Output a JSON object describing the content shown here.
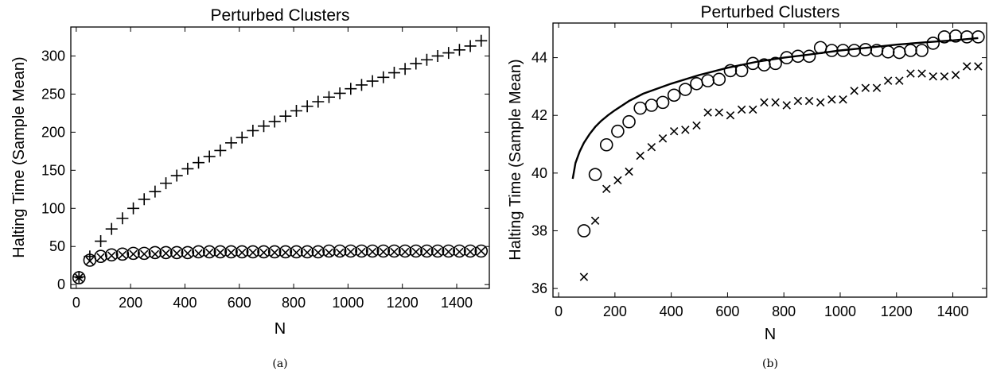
{
  "chart_data": [
    {
      "type": "scatter",
      "title": "Perturbed Clusters",
      "xlabel": "N",
      "ylabel": "Halting Time (Sample Mean)",
      "caption": "(a)",
      "xlim": [
        -20,
        1520
      ],
      "ylim": [
        -5,
        338
      ],
      "xticks": [
        0,
        200,
        400,
        600,
        800,
        1000,
        1200,
        1400
      ],
      "yticks": [
        0,
        50,
        100,
        150,
        200,
        250,
        300
      ],
      "grid": false,
      "series": [
        {
          "marker": "plus",
          "x": [
            10,
            50,
            90,
            130,
            170,
            210,
            250,
            290,
            330,
            370,
            410,
            450,
            490,
            530,
            570,
            610,
            650,
            690,
            730,
            770,
            810,
            850,
            890,
            930,
            970,
            1010,
            1050,
            1090,
            1130,
            1170,
            1210,
            1250,
            1290,
            1330,
            1370,
            1410,
            1450,
            1490
          ],
          "y": [
            10,
            37,
            57,
            73,
            87,
            100,
            112,
            122,
            133,
            143,
            152,
            160,
            168,
            176,
            186,
            193,
            202,
            208,
            214,
            221,
            228,
            234,
            240,
            246,
            251,
            257,
            262,
            267,
            272,
            278,
            283,
            290,
            295,
            300,
            304,
            308,
            313,
            320
          ]
        },
        {
          "marker": "circle",
          "x": [
            10,
            50,
            90,
            130,
            170,
            210,
            250,
            290,
            330,
            370,
            410,
            450,
            490,
            530,
            570,
            610,
            650,
            690,
            730,
            770,
            810,
            850,
            890,
            930,
            970,
            1010,
            1050,
            1090,
            1130,
            1170,
            1210,
            1250,
            1290,
            1330,
            1370,
            1410,
            1450,
            1490
          ],
          "y": [
            9,
            32,
            37,
            39,
            40,
            41,
            41,
            42,
            42,
            42,
            42,
            43,
            43,
            43,
            43,
            43,
            43,
            43,
            43,
            43,
            43,
            43,
            43,
            44,
            44,
            44,
            44,
            44,
            44,
            44,
            44,
            44,
            44,
            44,
            44,
            44,
            44,
            44
          ]
        },
        {
          "marker": "x",
          "x": [
            10,
            50,
            90,
            130,
            170,
            210,
            250,
            290,
            330,
            370,
            410,
            450,
            490,
            530,
            570,
            610,
            650,
            690,
            730,
            770,
            810,
            850,
            890,
            930,
            970,
            1010,
            1050,
            1090,
            1130,
            1170,
            1210,
            1250,
            1290,
            1330,
            1370,
            1410,
            1450,
            1490
          ],
          "y": [
            9,
            31,
            36,
            38,
            39,
            40,
            40,
            40,
            41,
            41,
            41,
            41,
            42,
            42,
            42,
            42,
            42,
            42,
            42,
            42,
            42,
            42,
            42,
            42,
            42,
            43,
            43,
            43,
            43,
            43,
            43,
            43,
            43,
            43,
            43,
            43,
            43,
            44
          ]
        },
        {
          "marker": "asterisk",
          "x": [
            10
          ],
          "y": [
            9
          ]
        }
      ]
    },
    {
      "type": "scatter",
      "title": "Perturbed Clusters",
      "xlabel": "N",
      "ylabel": "Halting Time (Sample Mean)",
      "caption": "(b)",
      "xlim": [
        -20,
        1520
      ],
      "ylim": [
        35.7,
        45.2
      ],
      "xticks": [
        0,
        200,
        400,
        600,
        800,
        1000,
        1200,
        1400
      ],
      "yticks": [
        36,
        38,
        40,
        42,
        44
      ],
      "grid": false,
      "series": [
        {
          "marker": "line",
          "x": [
            50,
            60,
            75,
            90,
            110,
            130,
            150,
            175,
            200,
            250,
            300,
            400,
            500,
            600,
            700,
            800,
            900,
            1000,
            1100,
            1200,
            1300,
            1400,
            1490
          ],
          "y": [
            39.8,
            40.35,
            40.75,
            41.05,
            41.35,
            41.6,
            41.8,
            42.0,
            42.18,
            42.5,
            42.75,
            43.1,
            43.4,
            43.65,
            43.85,
            44.0,
            44.12,
            44.25,
            44.35,
            44.45,
            44.53,
            44.6,
            44.68
          ]
        },
        {
          "marker": "circle",
          "x": [
            90,
            130,
            170,
            210,
            250,
            290,
            330,
            370,
            410,
            450,
            490,
            530,
            570,
            610,
            650,
            690,
            730,
            770,
            810,
            850,
            890,
            930,
            970,
            1010,
            1050,
            1090,
            1130,
            1170,
            1210,
            1250,
            1290,
            1330,
            1370,
            1410,
            1450,
            1490
          ],
          "y": [
            38.0,
            39.95,
            40.98,
            41.45,
            41.78,
            42.25,
            42.35,
            42.45,
            42.7,
            42.9,
            43.1,
            43.2,
            43.25,
            43.55,
            43.55,
            43.8,
            43.75,
            43.8,
            44.0,
            44.05,
            44.05,
            44.35,
            44.25,
            44.25,
            44.25,
            44.28,
            44.25,
            44.2,
            44.18,
            44.25,
            44.25,
            44.5,
            44.72,
            44.75,
            44.72,
            44.72
          ]
        },
        {
          "marker": "x",
          "x": [
            90,
            130,
            170,
            210,
            250,
            290,
            330,
            370,
            410,
            450,
            490,
            530,
            570,
            610,
            650,
            690,
            730,
            770,
            810,
            850,
            890,
            930,
            970,
            1010,
            1050,
            1090,
            1130,
            1170,
            1210,
            1250,
            1290,
            1330,
            1370,
            1410,
            1450,
            1490
          ],
          "y": [
            36.4,
            38.35,
            39.45,
            39.75,
            40.05,
            40.6,
            40.9,
            41.2,
            41.45,
            41.5,
            41.65,
            42.1,
            42.1,
            42.0,
            42.2,
            42.2,
            42.45,
            42.45,
            42.35,
            42.5,
            42.5,
            42.45,
            42.55,
            42.55,
            42.85,
            42.95,
            42.95,
            43.2,
            43.2,
            43.45,
            43.45,
            43.35,
            43.35,
            43.4,
            43.7,
            43.7
          ]
        }
      ]
    }
  ]
}
